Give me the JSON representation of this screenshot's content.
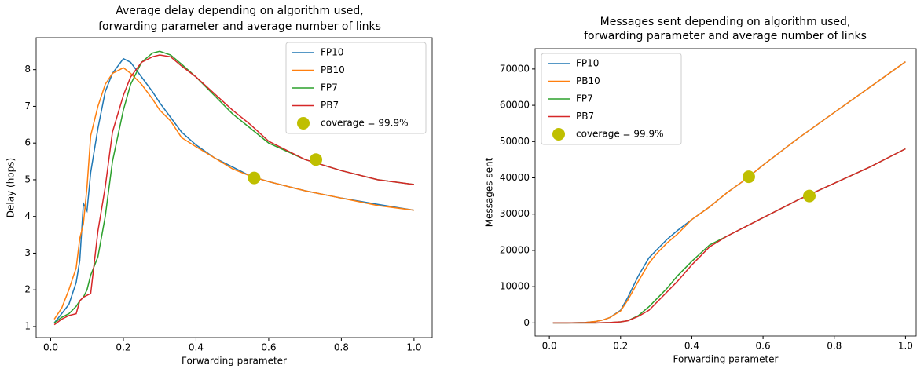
{
  "chart_data": [
    {
      "type": "line",
      "title": [
        "Average delay depending on algorithm used,",
        "forwarding parameter and average number of links"
      ],
      "xlabel": "Forwarding parameter",
      "ylabel": "Delay (hops)",
      "x": [
        0.01,
        0.03,
        0.05,
        0.07,
        0.08,
        0.09,
        0.1,
        0.11,
        0.13,
        0.15,
        0.17,
        0.2,
        0.22,
        0.25,
        0.28,
        0.3,
        0.33,
        0.36,
        0.4,
        0.45,
        0.5,
        0.55,
        0.6,
        0.7,
        0.8,
        0.9,
        1.0
      ],
      "series": [
        {
          "name": "FP10",
          "color": "#1f77b4",
          "values": [
            1.1,
            1.35,
            1.6,
            2.2,
            2.8,
            4.35,
            4.15,
            5.2,
            6.4,
            7.4,
            7.9,
            8.3,
            8.2,
            7.8,
            7.4,
            7.1,
            6.7,
            6.3,
            5.95,
            5.6,
            5.35,
            5.1,
            4.95,
            4.7,
            4.5,
            4.33,
            4.17
          ]
        },
        {
          "name": "PB10",
          "color": "#ff7f0e",
          "values": [
            1.2,
            1.5,
            2.0,
            2.6,
            3.4,
            3.8,
            4.8,
            6.2,
            7.0,
            7.6,
            7.9,
            8.05,
            7.9,
            7.6,
            7.2,
            6.9,
            6.6,
            6.15,
            5.9,
            5.6,
            5.3,
            5.1,
            4.95,
            4.7,
            4.5,
            4.3,
            4.17
          ]
        },
        {
          "name": "FP7",
          "color": "#2ca02c",
          "values": [
            1.1,
            1.25,
            1.35,
            1.55,
            1.7,
            1.8,
            2.0,
            2.4,
            2.9,
            4.0,
            5.5,
            6.9,
            7.6,
            8.2,
            8.45,
            8.5,
            8.4,
            8.15,
            7.8,
            7.3,
            6.8,
            6.4,
            6.0,
            5.55,
            5.25,
            5.0,
            4.87
          ]
        },
        {
          "name": "PB7",
          "color": "#d62728",
          "values": [
            1.05,
            1.2,
            1.3,
            1.35,
            1.7,
            1.8,
            1.85,
            1.9,
            3.6,
            4.8,
            6.3,
            7.3,
            7.8,
            8.2,
            8.35,
            8.4,
            8.35,
            8.1,
            7.8,
            7.35,
            6.9,
            6.5,
            6.05,
            5.55,
            5.25,
            5.0,
            4.87
          ]
        }
      ],
      "points": {
        "name": "coverage = 99.9%",
        "color": "#bfbf00",
        "x": [
          0.56,
          0.73
        ],
        "values": [
          5.05,
          5.55
        ]
      },
      "xlim": [
        -0.04,
        1.05
      ],
      "ylim": [
        0.7,
        8.87
      ],
      "xticks": [
        {
          "value": 0,
          "label": "0.0"
        },
        0.2,
        0.4,
        0.6,
        0.8,
        {
          "value": 1,
          "label": "1.0"
        }
      ],
      "yticks": [
        1,
        2,
        3,
        4,
        5,
        6,
        7,
        8
      ],
      "legend": "upper right"
    },
    {
      "type": "line",
      "title": [
        "Messages sent depending on algorithm used,",
        "forwarding parameter and average number of links"
      ],
      "xlabel": "Forwarding parameter",
      "ylabel": "Messages sent",
      "x": [
        0.01,
        0.05,
        0.1,
        0.13,
        0.15,
        0.17,
        0.2,
        0.22,
        0.25,
        0.28,
        0.3,
        0.33,
        0.36,
        0.4,
        0.45,
        0.5,
        0.55,
        0.6,
        0.7,
        0.8,
        0.9,
        1.0
      ],
      "series": [
        {
          "name": "FP10",
          "color": "#1f77b4",
          "values": [
            0,
            0,
            100,
            400,
            800,
            1500,
            3500,
            7000,
            13000,
            18000,
            20000,
            23000,
            25500,
            28500,
            32000,
            36000,
            39500,
            43500,
            51000,
            58000,
            65000,
            72000
          ]
        },
        {
          "name": "PB10",
          "color": "#ff7f0e",
          "values": [
            0,
            0,
            100,
            400,
            800,
            1500,
            3300,
            6300,
            11500,
            16500,
            19000,
            22000,
            24500,
            28500,
            32000,
            36000,
            39500,
            43500,
            51000,
            58000,
            65000,
            72000
          ]
        },
        {
          "name": "FP7",
          "color": "#2ca02c",
          "values": [
            0,
            0,
            0,
            0,
            50,
            100,
            300,
            600,
            2000,
            4500,
            6500,
            9500,
            13000,
            17000,
            21500,
            24000,
            26500,
            29000,
            34000,
            38500,
            43000,
            48000
          ]
        },
        {
          "name": "PB7",
          "color": "#d62728",
          "values": [
            0,
            0,
            0,
            0,
            50,
            100,
            300,
            600,
            1800,
            3500,
            5500,
            8500,
            11500,
            16000,
            21000,
            24000,
            26500,
            29000,
            34000,
            38500,
            43000,
            48000
          ]
        }
      ],
      "points": {
        "name": "coverage = 99.9%",
        "color": "#bfbf00",
        "x": [
          0.56,
          0.73
        ],
        "values": [
          40300,
          35000
        ]
      },
      "xlim": [
        -0.04,
        1.03
      ],
      "ylim": [
        -3600,
        75600
      ],
      "xticks": [
        {
          "value": 0,
          "label": "0.0"
        },
        0.2,
        0.4,
        0.6,
        0.8,
        {
          "value": 1,
          "label": "1.0"
        }
      ],
      "yticks": [
        0,
        10000,
        20000,
        30000,
        40000,
        50000,
        60000,
        70000
      ],
      "legend": "upper left"
    }
  ]
}
